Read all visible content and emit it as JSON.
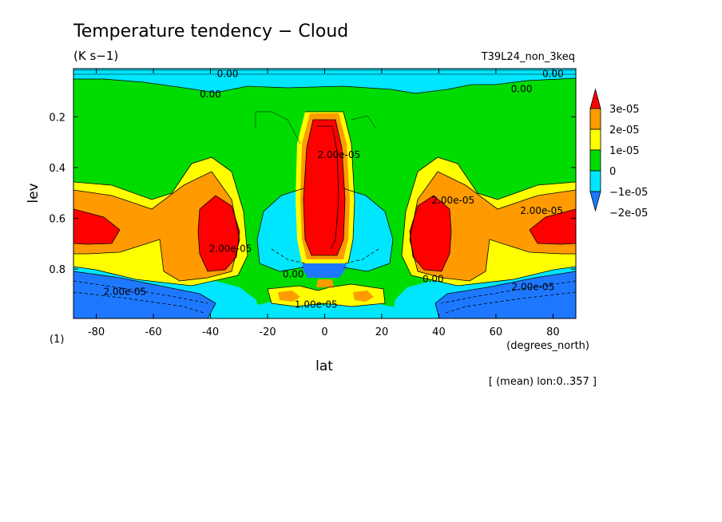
{
  "chart_data": {
    "type": "heatmap",
    "title": "Temperature tendency − Cloud",
    "units": "(K s−1)",
    "experiment": "T39L24_non_3keq",
    "xlabel": "lat",
    "xunits": "(degrees_north)",
    "ylabel": "lev",
    "yunits": "(1)",
    "footnote": "[ (mean) lon:0..357 ]",
    "xlim": [
      -88,
      88
    ],
    "ylim": [
      0.995,
      0.01
    ],
    "xticks": [
      -80,
      -60,
      -40,
      -20,
      0,
      20,
      40,
      60,
      80
    ],
    "yticks": [
      0.2,
      0.4,
      0.6,
      0.8
    ],
    "colorbar": {
      "labels": [
        "3e-05",
        "2e-05",
        "1e-05",
        "0",
        "−1e-05",
        "−2e-05"
      ],
      "levels": [
        -2e-05,
        -1e-05,
        0,
        1e-05,
        2e-05,
        3e-05
      ],
      "colors": [
        "#1e78ff",
        "#00e6ff",
        "#00dc00",
        "#ffff00",
        "#ff9b00",
        "#ff0000"
      ]
    },
    "contour_labels": [
      {
        "text": "0.00",
        "lat": -34,
        "lev": 0.03
      },
      {
        "text": "0.00",
        "lat": -40,
        "lev": 0.11
      },
      {
        "text": "0.00",
        "lat": 80,
        "lev": 0.03
      },
      {
        "text": "0.00",
        "lat": 69,
        "lev": 0.09
      },
      {
        "text": "2.00e-05",
        "lat": 5,
        "lev": 0.35
      },
      {
        "text": "2.00e-05",
        "lat": 45,
        "lev": 0.53
      },
      {
        "text": "2.00e-05",
        "lat": 76,
        "lev": 0.57
      },
      {
        "text": "2.00e-05",
        "lat": -33,
        "lev": 0.72
      },
      {
        "text": "2.00e-05",
        "lat": -70,
        "lev": 0.89
      },
      {
        "text": "2.00e-05",
        "lat": 73,
        "lev": 0.87
      },
      {
        "text": "0.00",
        "lat": -11,
        "lev": 0.82
      },
      {
        "text": "0.00",
        "lat": 38,
        "lev": 0.84
      },
      {
        "text": "1.00e-05",
        "lat": -3,
        "lev": 0.94
      }
    ]
  }
}
